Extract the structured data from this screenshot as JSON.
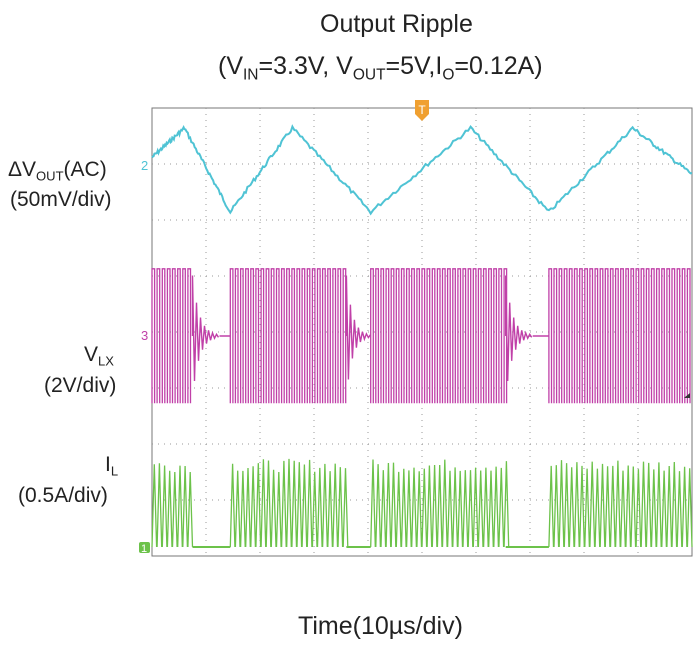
{
  "chart_data": {
    "type": "line",
    "title": "Output Ripple",
    "subtitle": {
      "part1": "(V",
      "sub1": "IN",
      "part2": "=3.3V, V",
      "sub2": "OUT",
      "part3": "=5V,I",
      "sub3": "O",
      "part4": "=0.12A)"
    },
    "xlabel": "Time(10µs/div)",
    "x_divisions": 10,
    "y_divisions": 8,
    "grid": true,
    "channels": [
      {
        "marker": "2",
        "label": {
          "a": "ΔV",
          "sub": "OUT",
          "b": "(AC)"
        },
        "scale": "(50mV/div)",
        "color": "#4fc3d4",
        "shape": "sawtooth ripple",
        "peaks_div": [
          0.6,
          2.6,
          5.9,
          8.9
        ],
        "valleys_div": [
          1.45,
          4.05,
          7.35
        ],
        "peak_to_peak_div": 1.0
      },
      {
        "marker": "3",
        "label": {
          "a": "V",
          "sub": "LX"
        },
        "scale": "(2V/div)",
        "color": "#c040a8",
        "shape": "switching bursts",
        "burst_start_div": [
          0.0,
          1.45,
          4.05,
          7.35
        ],
        "burst_end_div": [
          0.75,
          3.6,
          6.55,
          10.0
        ],
        "amplitude_div": 2.0
      },
      {
        "marker": "1",
        "label": {
          "a": "I",
          "sub": "L"
        },
        "scale": "(0.5A/div)",
        "color": "#6cc24a",
        "shape": "inductor current bursts",
        "burst_start_div": [
          0.0,
          1.45,
          4.05,
          7.35
        ],
        "burst_end_div": [
          0.75,
          3.6,
          6.55,
          10.0
        ],
        "amplitude_div": 1.5
      }
    ]
  }
}
